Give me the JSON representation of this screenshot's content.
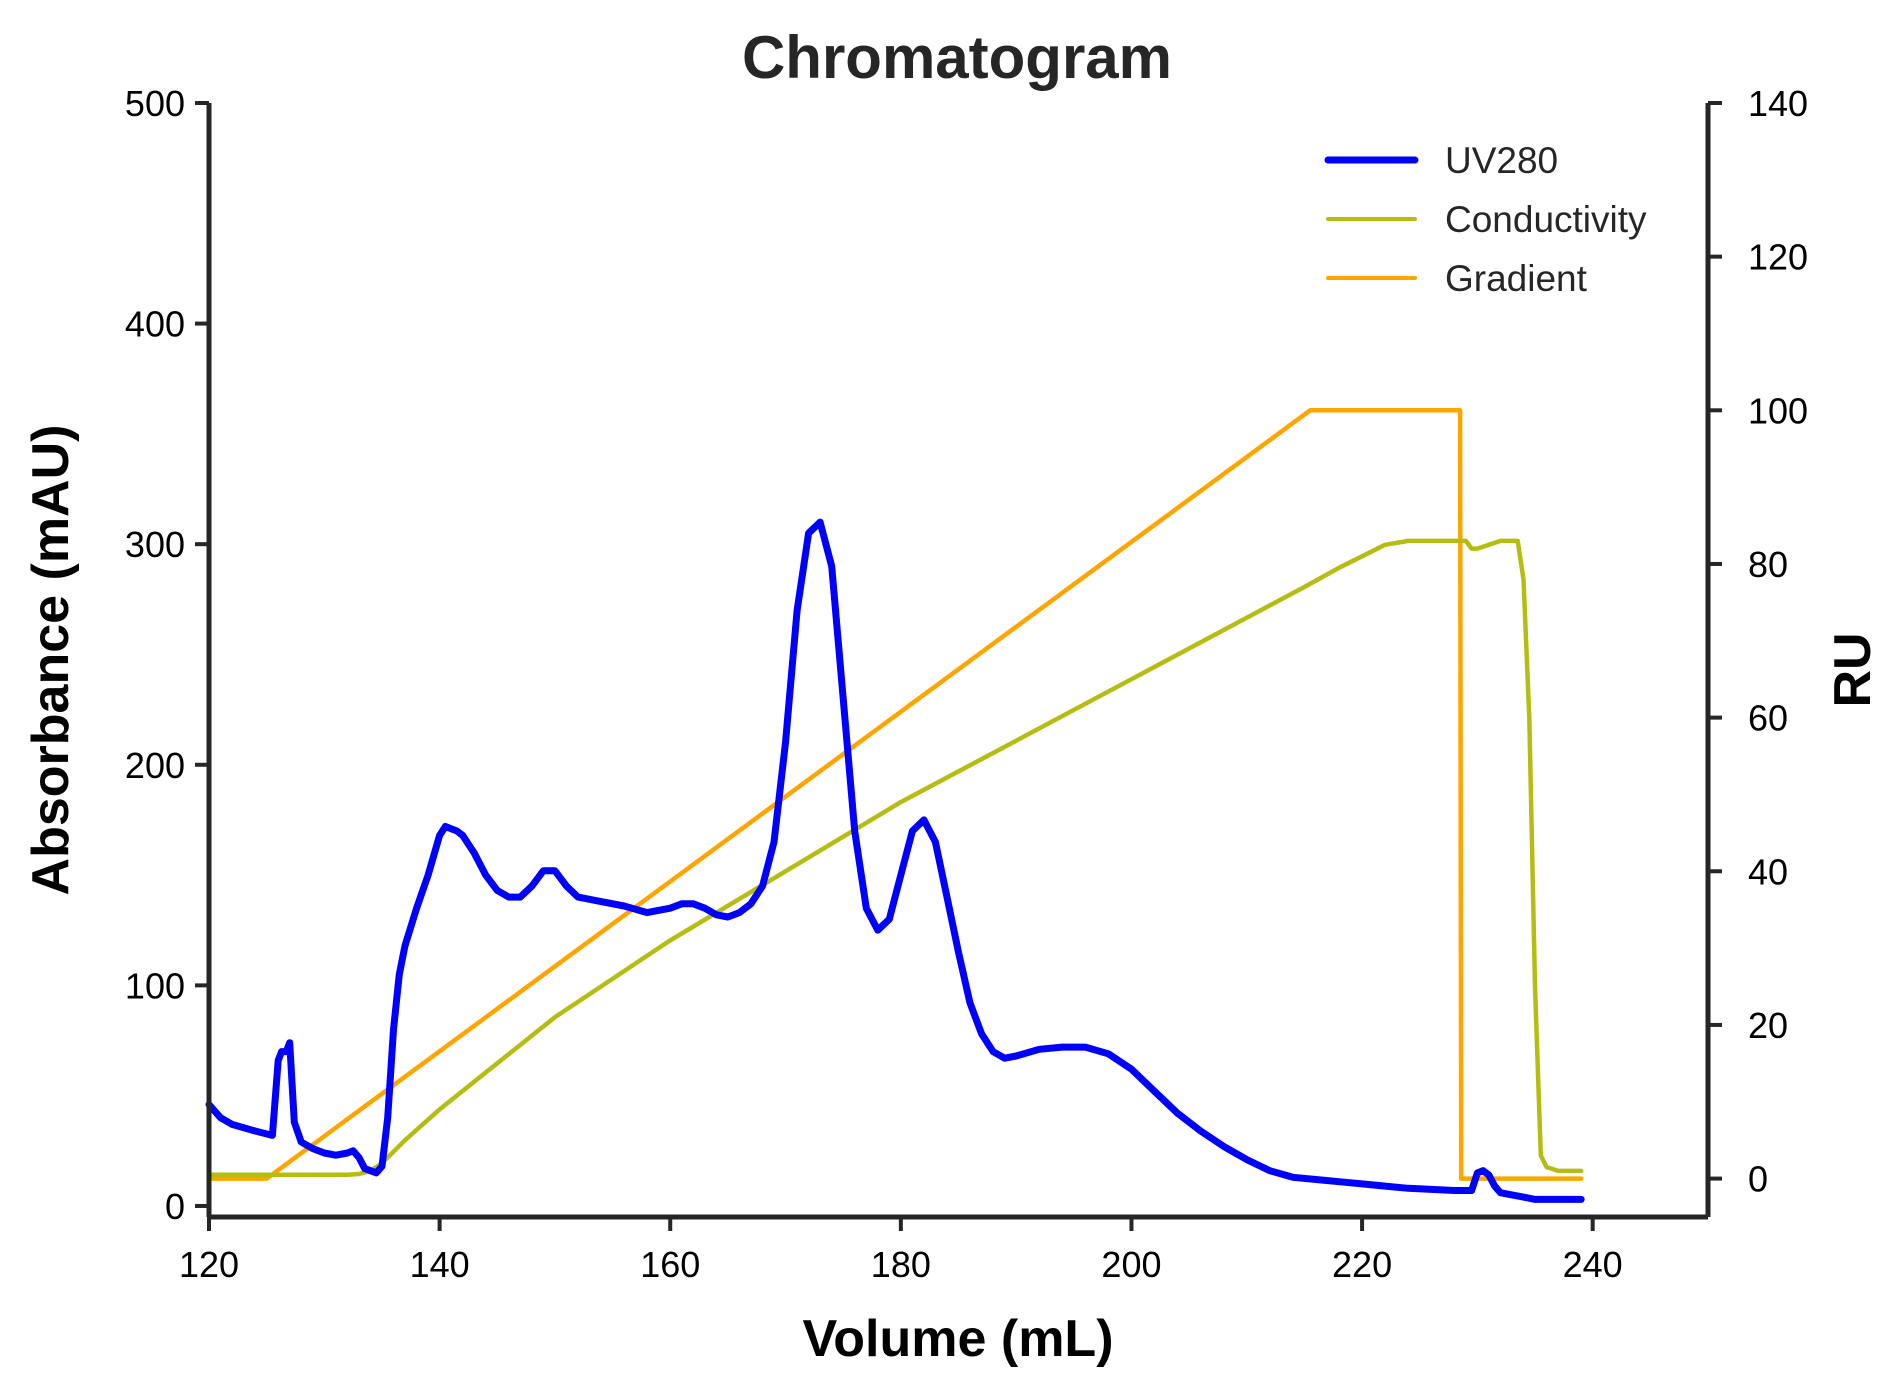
{
  "chart_data": {
    "type": "line",
    "title": "Chromatogram",
    "xlabel": "Volume (mL)",
    "ylabel": "Absorbance (mAU)",
    "y2label": "RU",
    "xlim": [
      120,
      250
    ],
    "ylim": [
      -5,
      500
    ],
    "y2lim": [
      -5,
      140
    ],
    "xticks": [
      "120",
      "140",
      "160",
      "180",
      "200",
      "220",
      "240"
    ],
    "yticks": [
      "0",
      "100",
      "200",
      "300",
      "400",
      "500"
    ],
    "y2ticks": [
      "0",
      "20",
      "40",
      "60",
      "80",
      "100",
      "120",
      "140"
    ],
    "grid": false,
    "legend_position": "top-right",
    "series": [
      {
        "name": "UV280",
        "axis": "left",
        "color": "#0000ff",
        "x": [
          120,
          121,
          122,
          124,
          125.5,
          126,
          126.3,
          126.7,
          127.0,
          127.4,
          128,
          129,
          130,
          131,
          132,
          132.5,
          133,
          133.5,
          134,
          134.5,
          135,
          135.5,
          136,
          136.5,
          137,
          138,
          139,
          140,
          140.5,
          141,
          141.5,
          142,
          143,
          144,
          145,
          146,
          147,
          148,
          149,
          150,
          151,
          152,
          154,
          156,
          158,
          160,
          161,
          162,
          163,
          164,
          165,
          166,
          167,
          168,
          169,
          170,
          171,
          172,
          173,
          174,
          175,
          176,
          177,
          178,
          179,
          180,
          181,
          182,
          183,
          184,
          185,
          186,
          187,
          188,
          189,
          190,
          192,
          194,
          196,
          198,
          200,
          202,
          204,
          206,
          208,
          210,
          212,
          214,
          216,
          218,
          220,
          222,
          224,
          226,
          228,
          229,
          229.5,
          230,
          230.5,
          231,
          231.5,
          232,
          233,
          234,
          235,
          236,
          237,
          238,
          239
        ],
        "y": [
          46,
          40,
          37,
          34,
          32,
          66,
          70,
          70,
          74,
          38,
          29,
          26,
          24,
          23,
          24,
          25,
          22,
          17,
          16,
          15,
          18,
          40,
          80,
          105,
          118,
          135,
          150,
          168,
          172,
          171,
          170,
          168,
          160,
          150,
          143,
          140,
          140,
          145,
          152,
          152,
          145,
          140,
          138,
          136,
          133,
          135,
          137,
          137,
          135,
          132,
          131,
          133,
          137,
          145,
          165,
          210,
          270,
          305,
          310,
          290,
          230,
          170,
          135,
          125,
          130,
          150,
          170,
          175,
          165,
          140,
          115,
          92,
          78,
          70,
          67,
          68,
          71,
          72,
          72,
          69,
          62,
          52,
          42,
          34,
          27,
          21,
          16,
          13,
          12,
          11,
          10,
          9,
          8,
          7.5,
          7,
          7,
          7,
          15,
          16,
          14,
          9,
          6,
          5,
          4,
          3,
          3,
          3,
          3,
          3
        ]
      },
      {
        "name": "Conductivity",
        "axis": "right",
        "color": "#b5bd13",
        "x": [
          120,
          132,
          133,
          134,
          135,
          136,
          137,
          140,
          150,
          160,
          170,
          180,
          190,
          200,
          210,
          215,
          218,
          220,
          222,
          224,
          226,
          228,
          229,
          229.5,
          230,
          232,
          233.5,
          234,
          234.5,
          235,
          235.5,
          236,
          237,
          239
        ],
        "y": [
          0.5,
          0.5,
          0.6,
          1,
          2,
          3.5,
          5,
          9,
          21,
          31,
          40,
          49,
          57,
          65,
          73,
          77,
          79.5,
          81,
          82.5,
          83,
          83,
          83,
          83,
          82,
          82,
          83,
          83,
          78,
          60,
          25,
          3,
          1.5,
          1,
          1
        ]
      },
      {
        "name": "Gradient",
        "axis": "right",
        "color": "#ffa500",
        "x": [
          120,
          125,
          215.5,
          228.5,
          228.6,
          239
        ],
        "y": [
          0,
          0,
          100,
          100,
          0,
          0
        ]
      }
    ]
  }
}
